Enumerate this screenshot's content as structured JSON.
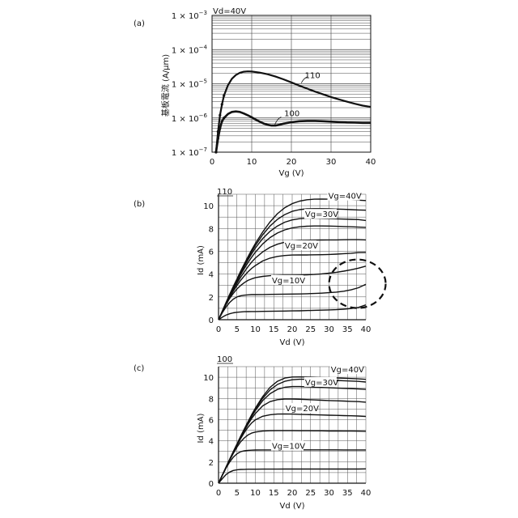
{
  "chart_data": [
    {
      "id": "a",
      "panel_label": "(a)",
      "type": "line",
      "title": "Vd=40V",
      "xlabel": "Vg (V)",
      "ylabel": "基板電流 (A/μm)",
      "xscale": "linear",
      "yscale": "log",
      "xlim": [
        0,
        40
      ],
      "ylim": [
        1e-07,
        0.001
      ],
      "grid": true,
      "xticks": [
        0,
        10,
        20,
        30,
        40
      ],
      "xtick_labels": [
        "0",
        "10",
        "20",
        "30",
        "40"
      ],
      "yticks": [
        1e-07,
        1e-06,
        1e-05,
        0.0001,
        0.001
      ],
      "ytick_labels": [
        {
          "base": "1 × 10",
          "exp": "−7"
        },
        {
          "base": "1 × 10",
          "exp": "−6"
        },
        {
          "base": "1 × 10",
          "exp": "−5"
        },
        {
          "base": "1 × 10",
          "exp": "−4"
        },
        {
          "base": "1 × 10",
          "exp": "−3"
        }
      ],
      "series": [
        {
          "name": "110",
          "x": [
            1,
            1.5,
            2,
            2.5,
            3,
            4,
            5,
            6,
            7,
            8,
            9,
            10,
            12,
            14,
            16,
            18,
            20,
            22,
            24,
            26,
            28,
            30,
            32,
            34,
            36,
            38,
            40
          ],
          "y": [
            1e-07,
            4e-07,
            1.2e-06,
            2.5e-06,
            4.5e-06,
            9e-06,
            1.4e-05,
            1.8e-05,
            2.1e-05,
            2.25e-05,
            2.3e-05,
            2.28e-05,
            2.12e-05,
            1.9e-05,
            1.62e-05,
            1.35e-05,
            1.1e-05,
            8.8e-06,
            7.2e-06,
            5.9e-06,
            4.9e-06,
            4.1e-06,
            3.5e-06,
            3e-06,
            2.6e-06,
            2.3e-06,
            2.1e-06
          ]
        },
        {
          "name": "100",
          "x": [
            1,
            1.5,
            2,
            2.5,
            3,
            4,
            5,
            6,
            7,
            8,
            9,
            10,
            11,
            12,
            13,
            14,
            15,
            16,
            17,
            18,
            20,
            22,
            24,
            26,
            28,
            30,
            32,
            34,
            36,
            38,
            40
          ],
          "y": [
            1e-07,
            2.5e-07,
            5e-07,
            8e-07,
            1e-06,
            1.3e-06,
            1.5e-06,
            1.55e-06,
            1.5e-06,
            1.35e-06,
            1.2e-06,
            1.05e-06,
            9e-07,
            7.8e-07,
            6.9e-07,
            6.3e-07,
            6e-07,
            6e-07,
            6.3e-07,
            6.8e-07,
            7.5e-07,
            8e-07,
            8.2e-07,
            8.2e-07,
            8e-07,
            7.8e-07,
            7.6e-07,
            7.4e-07,
            7.3e-07,
            7.2e-07,
            7.2e-07
          ]
        }
      ]
    },
    {
      "id": "b",
      "panel_label": "(b)",
      "type": "line",
      "title": "110",
      "xlabel": "Vd (V)",
      "ylabel": "Id (mA)",
      "xlim": [
        0,
        40
      ],
      "ylim": [
        0,
        11
      ],
      "grid": true,
      "xticks": [
        0,
        5,
        10,
        15,
        20,
        25,
        30,
        35,
        40
      ],
      "xtick_labels": [
        "0",
        "5",
        "10",
        "15",
        "20",
        "25",
        "30",
        "35",
        "40"
      ],
      "yticks": [
        0,
        2,
        4,
        6,
        8,
        10
      ],
      "ytick_labels": [
        "0",
        "2",
        "4",
        "6",
        "8",
        "10"
      ],
      "annotations": [
        "Vg=40V",
        "Vg=30V",
        "Vg=20V",
        "Vg=10V"
      ],
      "x": [
        0,
        1,
        2,
        3,
        4,
        5,
        6,
        7,
        8,
        9,
        10,
        12,
        14,
        16,
        18,
        20,
        22,
        24,
        26,
        28,
        30,
        32,
        34,
        36,
        38,
        40
      ],
      "series": [
        {
          "values": [
            0,
            0.22,
            0.4,
            0.52,
            0.6,
            0.65,
            0.68,
            0.7,
            0.71,
            0.72,
            0.72,
            0.73,
            0.74,
            0.75,
            0.76,
            0.77,
            0.78,
            0.8,
            0.82,
            0.84,
            0.86,
            0.88,
            0.92,
            0.98,
            1.08,
            1.3
          ]
        },
        {
          "values": [
            0,
            0.6,
            1.1,
            1.5,
            1.8,
            2.0,
            2.1,
            2.15,
            2.18,
            2.2,
            2.2,
            2.21,
            2.22,
            2.23,
            2.24,
            2.25,
            2.26,
            2.28,
            2.3,
            2.33,
            2.37,
            2.42,
            2.5,
            2.62,
            2.8,
            3.1
          ]
        },
        {
          "values": [
            0,
            0.7,
            1.3,
            1.85,
            2.3,
            2.7,
            3.0,
            3.25,
            3.45,
            3.58,
            3.68,
            3.8,
            3.86,
            3.89,
            3.9,
            3.91,
            3.92,
            3.94,
            3.97,
            4.02,
            4.08,
            4.16,
            4.26,
            4.38,
            4.52,
            4.7
          ]
        },
        {
          "values": [
            0,
            0.7,
            1.35,
            1.95,
            2.5,
            3.0,
            3.45,
            3.85,
            4.2,
            4.5,
            4.75,
            5.15,
            5.4,
            5.55,
            5.63,
            5.67,
            5.68,
            5.68,
            5.69,
            5.7,
            5.72,
            5.75,
            5.79,
            5.83,
            5.88,
            5.9
          ]
        },
        {
          "values": [
            0,
            0.7,
            1.4,
            2.05,
            2.65,
            3.2,
            3.72,
            4.2,
            4.65,
            5.05,
            5.4,
            5.95,
            6.35,
            6.62,
            6.8,
            6.9,
            6.95,
            6.97,
            6.98,
            6.99,
            7.0,
            7.0,
            7.01,
            7.02,
            7.02,
            7.0
          ]
        },
        {
          "values": [
            0,
            0.7,
            1.4,
            2.1,
            2.75,
            3.35,
            3.95,
            4.5,
            5.0,
            5.48,
            5.92,
            6.65,
            7.2,
            7.6,
            7.88,
            8.05,
            8.15,
            8.2,
            8.22,
            8.22,
            8.21,
            8.19,
            8.17,
            8.15,
            8.12,
            8.1
          ]
        },
        {
          "values": [
            0,
            0.72,
            1.42,
            2.12,
            2.8,
            3.45,
            4.08,
            4.68,
            5.25,
            5.78,
            6.28,
            7.12,
            7.75,
            8.22,
            8.55,
            8.75,
            8.86,
            8.9,
            8.9,
            8.88,
            8.86,
            8.84,
            8.82,
            8.8,
            8.78,
            8.7
          ]
        },
        {
          "values": [
            0,
            0.72,
            1.44,
            2.15,
            2.85,
            3.52,
            4.18,
            4.8,
            5.4,
            5.97,
            6.5,
            7.45,
            8.22,
            8.8,
            9.22,
            9.5,
            9.65,
            9.72,
            9.74,
            9.74,
            9.72,
            9.7,
            9.68,
            9.65,
            9.62,
            9.6
          ]
        },
        {
          "values": [
            0,
            0.75,
            1.48,
            2.2,
            2.9,
            3.58,
            4.25,
            4.9,
            5.52,
            6.12,
            6.68,
            7.7,
            8.58,
            9.3,
            9.82,
            10.18,
            10.4,
            10.52,
            10.57,
            10.58,
            10.57,
            10.56,
            10.54,
            10.52,
            10.48,
            10.45
          ]
        }
      ]
    },
    {
      "id": "c",
      "panel_label": "(c)",
      "type": "line",
      "title": "100",
      "xlabel": "Vd (V)",
      "ylabel": "Id (mA)",
      "xlim": [
        0,
        40
      ],
      "ylim": [
        0,
        11
      ],
      "grid": true,
      "xticks": [
        0,
        5,
        10,
        15,
        20,
        25,
        30,
        35,
        40
      ],
      "xtick_labels": [
        "0",
        "5",
        "10",
        "15",
        "20",
        "25",
        "30",
        "35",
        "40"
      ],
      "yticks": [
        0,
        2,
        4,
        6,
        8,
        10
      ],
      "ytick_labels": [
        "0",
        "2",
        "4",
        "6",
        "8",
        "10"
      ],
      "annotations": [
        "Vg=40V",
        "Vg=30V",
        "Vg=20V",
        "Vg=10V"
      ],
      "x": [
        0,
        1,
        2,
        3,
        4,
        5,
        6,
        7,
        8,
        9,
        10,
        12,
        14,
        16,
        18,
        20,
        22,
        24,
        26,
        28,
        30,
        32,
        34,
        36,
        38,
        40
      ],
      "series": [
        {
          "values": [
            0,
            0.42,
            0.8,
            1.05,
            1.2,
            1.27,
            1.3,
            1.31,
            1.32,
            1.32,
            1.32,
            1.33,
            1.33,
            1.33,
            1.34,
            1.34,
            1.34,
            1.34,
            1.34,
            1.34,
            1.34,
            1.34,
            1.34,
            1.34,
            1.34,
            1.35
          ]
        },
        {
          "values": [
            0,
            0.72,
            1.4,
            1.98,
            2.45,
            2.78,
            2.97,
            3.06,
            3.1,
            3.12,
            3.13,
            3.14,
            3.14,
            3.14,
            3.15,
            3.15,
            3.15,
            3.15,
            3.15,
            3.15,
            3.15,
            3.15,
            3.14,
            3.14,
            3.14,
            3.14
          ]
        },
        {
          "values": [
            0,
            0.73,
            1.45,
            2.15,
            2.8,
            3.4,
            3.9,
            4.28,
            4.55,
            4.73,
            4.83,
            4.92,
            4.95,
            4.96,
            4.96,
            4.96,
            4.95,
            4.95,
            4.94,
            4.94,
            4.93,
            4.93,
            4.92,
            4.92,
            4.91,
            4.9
          ]
        },
        {
          "values": [
            0,
            0.73,
            1.46,
            2.18,
            2.88,
            3.56,
            4.2,
            4.78,
            5.28,
            5.68,
            5.98,
            6.32,
            6.46,
            6.52,
            6.53,
            6.52,
            6.5,
            6.48,
            6.46,
            6.44,
            6.42,
            6.4,
            6.38,
            6.36,
            6.34,
            6.3
          ]
        },
        {
          "values": [
            0,
            0.74,
            1.47,
            2.2,
            2.92,
            3.62,
            4.3,
            4.95,
            5.55,
            6.1,
            6.58,
            7.3,
            7.7,
            7.88,
            7.94,
            7.94,
            7.92,
            7.89,
            7.86,
            7.83,
            7.8,
            7.78,
            7.75,
            7.72,
            7.7,
            7.65
          ]
        },
        {
          "values": [
            0,
            0.74,
            1.48,
            2.21,
            2.94,
            3.66,
            4.36,
            5.04,
            5.68,
            6.28,
            6.85,
            7.8,
            8.45,
            8.85,
            9.05,
            9.12,
            9.12,
            9.1,
            9.07,
            9.04,
            9.01,
            8.98,
            8.95,
            8.92,
            8.89,
            8.85
          ]
        },
        {
          "values": [
            0,
            0.74,
            1.48,
            2.22,
            2.96,
            3.68,
            4.4,
            5.1,
            5.76,
            6.4,
            7.0,
            8.02,
            8.8,
            9.32,
            9.62,
            9.76,
            9.81,
            9.81,
            9.79,
            9.76,
            9.73,
            9.7,
            9.67,
            9.64,
            9.61,
            9.55
          ]
        },
        {
          "values": [
            0,
            0.75,
            1.49,
            2.23,
            2.97,
            3.7,
            4.42,
            5.12,
            5.8,
            6.46,
            7.08,
            8.18,
            9.05,
            9.62,
            9.92,
            10.02,
            10.03,
            10.02,
            10.0,
            9.98,
            9.96,
            9.93,
            9.91,
            9.88,
            9.85,
            9.8
          ]
        }
      ]
    }
  ]
}
